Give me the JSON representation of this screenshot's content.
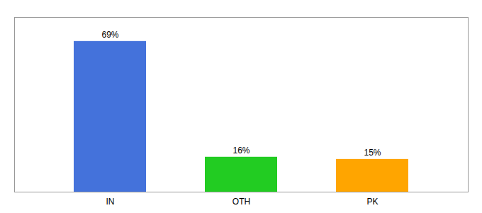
{
  "chart_data": {
    "type": "bar",
    "categories": [
      "IN",
      "OTH",
      "PK"
    ],
    "values": [
      69,
      16,
      15
    ],
    "value_labels": [
      "69%",
      "16%",
      "15%"
    ],
    "data_labels": true,
    "colors": [
      "#4472DB",
      "#22CC22",
      "#FFA500"
    ],
    "ylim": [
      0,
      80
    ],
    "tick_labels": "x"
  }
}
